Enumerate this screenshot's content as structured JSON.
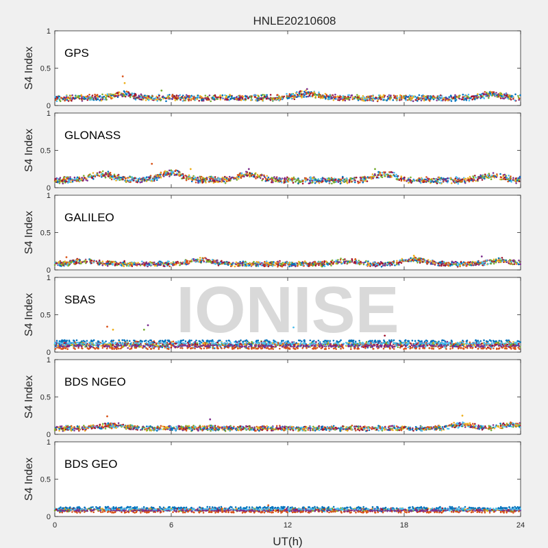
{
  "chart_data": {
    "type": "scatter",
    "title": "HNLE20210608",
    "xlabel": "UT(h)",
    "ylabel": "S4 Index",
    "xlim": [
      0,
      24
    ],
    "ylim": [
      0,
      1
    ],
    "x_ticks": [
      "0",
      "6",
      "12",
      "18",
      "24"
    ],
    "y_ticks": [
      "0",
      "0.5",
      "1"
    ],
    "watermark": "IONISE",
    "series_colors": [
      "#0072bd",
      "#d95319",
      "#edb120",
      "#7e2f8e",
      "#77ac30",
      "#4dbeee",
      "#a2142f"
    ],
    "panels": [
      {
        "label": "GPS",
        "baseline": 0.1,
        "spread": 0.05,
        "outliers": [
          {
            "x": 3.5,
            "y": 0.39
          },
          {
            "x": 3.6,
            "y": 0.3
          },
          {
            "x": 13.0,
            "y": 0.22
          },
          {
            "x": 5.5,
            "y": 0.2
          }
        ],
        "humps": [
          {
            "x": 3.5,
            "h": 0.05
          },
          {
            "x": 13.0,
            "h": 0.06
          },
          {
            "x": 22.5,
            "h": 0.05
          }
        ]
      },
      {
        "label": "GLONASS",
        "baseline": 0.1,
        "spread": 0.05,
        "outliers": [
          {
            "x": 5.0,
            "y": 0.32
          },
          {
            "x": 7.0,
            "y": 0.25
          },
          {
            "x": 10.0,
            "y": 0.25
          },
          {
            "x": 16.5,
            "y": 0.25
          }
        ],
        "humps": [
          {
            "x": 2.5,
            "h": 0.08
          },
          {
            "x": 6.0,
            "h": 0.1
          },
          {
            "x": 10.0,
            "h": 0.08
          },
          {
            "x": 17.0,
            "h": 0.08
          },
          {
            "x": 22.5,
            "h": 0.06
          }
        ]
      },
      {
        "label": "GALILEO",
        "baseline": 0.08,
        "spread": 0.04,
        "outliers": [
          {
            "x": 0.6,
            "y": 0.17
          },
          {
            "x": 18.5,
            "y": 0.19
          },
          {
            "x": 22.0,
            "y": 0.18
          }
        ],
        "humps": [
          {
            "x": 1.5,
            "h": 0.04
          },
          {
            "x": 7.5,
            "h": 0.05
          },
          {
            "x": 15.0,
            "h": 0.04
          },
          {
            "x": 18.5,
            "h": 0.06
          },
          {
            "x": 23.0,
            "h": 0.05
          }
        ]
      },
      {
        "label": "SBAS",
        "baseline": 0.1,
        "spread": 0.05,
        "outliers": [
          {
            "x": 2.7,
            "y": 0.34
          },
          {
            "x": 3.0,
            "y": 0.3
          },
          {
            "x": 4.8,
            "y": 0.36
          },
          {
            "x": 4.6,
            "y": 0.3
          },
          {
            "x": 12.3,
            "y": 0.33
          },
          {
            "x": 17.0,
            "y": 0.22
          }
        ],
        "humps": []
      },
      {
        "label": "BDS NGEO",
        "baseline": 0.08,
        "spread": 0.04,
        "outliers": [
          {
            "x": 2.7,
            "y": 0.24
          },
          {
            "x": 21.0,
            "y": 0.25
          },
          {
            "x": 8.0,
            "y": 0.2
          }
        ],
        "humps": [
          {
            "x": 3.0,
            "h": 0.04
          },
          {
            "x": 21.0,
            "h": 0.05
          },
          {
            "x": 23.5,
            "h": 0.05
          }
        ]
      },
      {
        "label": "BDS GEO",
        "baseline": 0.09,
        "spread": 0.025,
        "outliers": [
          {
            "x": 11.0,
            "y": 0.15
          }
        ],
        "humps": []
      }
    ]
  }
}
